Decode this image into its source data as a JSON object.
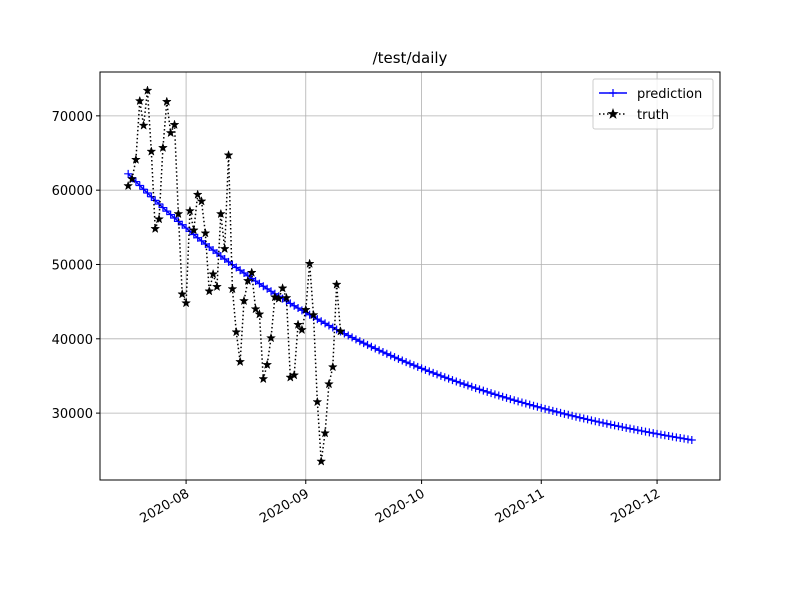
{
  "chart_data": {
    "type": "line",
    "title": "/test/daily",
    "categories": [
      null,
      null,
      null,
      null,
      null,
      null,
      null,
      null,
      null,
      null,
      null,
      null,
      null,
      null,
      null,
      "2020-08",
      null,
      null,
      null,
      null,
      null,
      null,
      null,
      null,
      null,
      null,
      null,
      null,
      null,
      null,
      null,
      null,
      null,
      null,
      null,
      null,
      null,
      null,
      null,
      null,
      null,
      null,
      null,
      null,
      null,
      null,
      "2020-09",
      null,
      null,
      null,
      null,
      null,
      null,
      null,
      null,
      null,
      null,
      null,
      null,
      null,
      null,
      null,
      null,
      null,
      null,
      null,
      null,
      null,
      null,
      null,
      null,
      null,
      null,
      null,
      null,
      null,
      "2020-10",
      null,
      null,
      null,
      null,
      null,
      null,
      null,
      null,
      null,
      null,
      null,
      null,
      null,
      null,
      null,
      null,
      null,
      null,
      null,
      null,
      null,
      null,
      null,
      null,
      null,
      null,
      null,
      null,
      null,
      null,
      "2020-11",
      null,
      null,
      null,
      null,
      null,
      null,
      null,
      null,
      null,
      null,
      null,
      null,
      null,
      null,
      null,
      null,
      null,
      null,
      null,
      null,
      null,
      null,
      null,
      null,
      null,
      null,
      null,
      null,
      null,
      "2020-12",
      null,
      null,
      null,
      null,
      null,
      null,
      null,
      null,
      null
    ],
    "series": [
      {
        "name": "prediction",
        "color": "#0000ff",
        "marker": "+",
        "linestyle": "solid",
        "values": [
          62200,
          61670,
          61146,
          60629,
          60118,
          59614,
          59116,
          58624,
          58138,
          57658,
          57184,
          56716,
          56254,
          55798,
          55347,
          54902,
          54462,
          54028,
          53599,
          53175,
          52757,
          52344,
          51936,
          51533,
          51135,
          50742,
          50354,
          49971,
          49593,
          49219,
          48850,
          48485,
          48125,
          47769,
          47418,
          47071,
          46729,
          46391,
          46057,
          45727,
          45401,
          45079,
          44761,
          44447,
          44137,
          43831,
          43529,
          43231,
          42936,
          42645,
          42358,
          42074,
          41794,
          41517,
          41244,
          40974,
          40707,
          40444,
          40184,
          39927,
          39673,
          39422,
          39175,
          38931,
          38690,
          38452,
          38217,
          37985,
          37755,
          37528,
          37304,
          37083,
          36865,
          36649,
          36436,
          36226,
          36018,
          35813,
          35610,
          35410,
          35212,
          35017,
          34824,
          34634,
          34446,
          34260,
          34077,
          33896,
          33717,
          33540,
          33366,
          33194,
          33024,
          32856,
          32690,
          32526,
          32364,
          32204,
          32046,
          31890,
          31736,
          31584,
          31434,
          31286,
          31140,
          30995,
          30852,
          30711,
          30572,
          30434,
          30298,
          30164,
          30032,
          29901,
          29772,
          29644,
          29518,
          29394,
          29271,
          29150,
          29030,
          28912,
          28795,
          28680,
          28566,
          28453,
          28342,
          28232,
          28124,
          28017,
          27911,
          27807,
          27704,
          27602,
          27501,
          27402,
          27304,
          27207,
          27111,
          27016,
          26923,
          26831,
          26740,
          26650,
          26561,
          26473,
          26386
        ]
      },
      {
        "name": "truth",
        "color": "#000000",
        "marker": "*",
        "linestyle": "dotted",
        "values": [
          60570,
          61500,
          64100,
          72000,
          68700,
          73400,
          65200,
          54800,
          56100,
          65700,
          71900,
          67700,
          68800,
          56800,
          46000,
          44800,
          57200,
          54600,
          59400,
          58500,
          54200,
          46400,
          48700,
          47000,
          56800,
          52100,
          64700,
          46700,
          40900,
          36900,
          45100,
          47800,
          48900,
          44000,
          43300,
          34600,
          36500,
          40100,
          45600,
          45400,
          46800,
          45500,
          34800,
          35100,
          41900,
          41200,
          43900,
          50100,
          43200,
          31500,
          23500,
          27300,
          33900,
          36200,
          47300,
          41000,
          null,
          null,
          null,
          null,
          null,
          null,
          null,
          null,
          null,
          null,
          null,
          null,
          null,
          null,
          null,
          null,
          null,
          null,
          null,
          null,
          null,
          null,
          null,
          null,
          null,
          null,
          null,
          null,
          null,
          null,
          null,
          null,
          null,
          null,
          null,
          null,
          null,
          null,
          null,
          null,
          null,
          null,
          null,
          null,
          null,
          null,
          null,
          null,
          null,
          null,
          null,
          null,
          null,
          null,
          null,
          null,
          null,
          null,
          null,
          null,
          null,
          null,
          null,
          null,
          null,
          null,
          null,
          null,
          null,
          null,
          null,
          null,
          null,
          null,
          null,
          null,
          null,
          null,
          null,
          null,
          null,
          null,
          null,
          null,
          null,
          null,
          null,
          null,
          null,
          null,
          null
        ]
      }
    ],
    "ylim": [
      21000,
      75900
    ],
    "yticks": [
      30000,
      40000,
      50000,
      60000,
      70000
    ],
    "grid": true,
    "legend": "upper right"
  }
}
